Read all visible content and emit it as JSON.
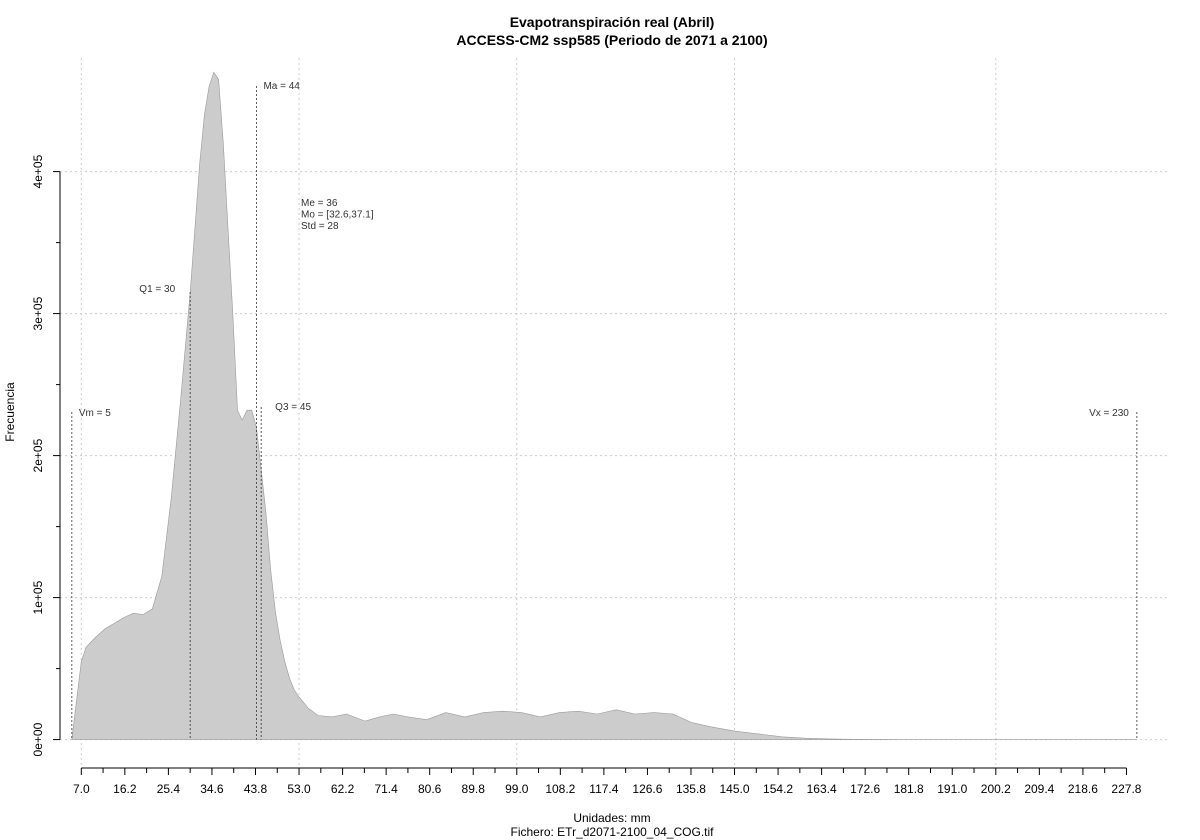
{
  "chart_data": {
    "type": "area",
    "title": "Evapotranspiración real (Abril)",
    "subtitle": "ACCESS-CM2 ssp585 (Periodo de 2071 a 2100)",
    "xlabel": "Unidades: mm",
    "caption": "Fichero: ETr_d2071-2100_04_COG.tif",
    "ylabel": "Frecuencia",
    "xlim": [
      2.5,
      237.0
    ],
    "ylim": [
      -20000,
      480000
    ],
    "grid": true,
    "x_tick_labels": [
      "7.0",
      "16.2",
      "25.4",
      "34.6",
      "43.8",
      "53.0",
      "62.2",
      "71.4",
      "80.6",
      "89.8",
      "99.0",
      "108.2",
      "117.4",
      "126.6",
      "135.8",
      "145.0",
      "154.2",
      "163.4",
      "172.6",
      "181.8",
      "191.0",
      "200.2",
      "209.4",
      "218.6",
      "227.8"
    ],
    "y_ticks": [
      0,
      100000,
      200000,
      300000,
      400000
    ],
    "y_tick_labels": [
      "0e+00",
      "1e+05",
      "2e+05",
      "3e+05",
      "4e+05"
    ],
    "density": {
      "x": [
        5,
        7,
        8,
        10,
        12,
        14,
        16,
        18,
        20,
        22,
        24,
        26,
        28,
        30,
        31,
        32,
        33,
        34,
        35,
        36,
        37,
        38,
        39,
        40,
        41,
        42,
        43,
        44,
        45,
        46,
        47,
        48,
        49,
        50,
        51,
        52,
        53,
        55,
        57,
        60,
        63,
        67,
        70,
        73,
        76,
        80,
        84,
        88,
        92,
        96,
        100,
        104,
        108,
        112,
        116,
        120,
        124,
        128,
        132,
        136,
        140,
        145,
        150,
        155,
        160,
        165,
        170,
        180,
        200,
        230
      ],
      "y": [
        0,
        55000,
        65000,
        72000,
        78000,
        82000,
        86000,
        89000,
        88000,
        92000,
        115000,
        170000,
        240000,
        315000,
        360000,
        405000,
        440000,
        460000,
        470000,
        465000,
        420000,
        360000,
        300000,
        232000,
        225000,
        232000,
        232000,
        220000,
        190000,
        160000,
        120000,
        90000,
        70000,
        55000,
        43000,
        35000,
        30000,
        22000,
        17000,
        16000,
        18000,
        13000,
        16000,
        18000,
        16000,
        14000,
        19000,
        16000,
        19000,
        20000,
        19000,
        16000,
        19000,
        20000,
        18000,
        21000,
        18000,
        19000,
        18000,
        12000,
        9000,
        6000,
        4000,
        2000,
        1000,
        500,
        200,
        100,
        50,
        0
      ]
    },
    "vertical_lines": [
      {
        "x": 5,
        "label": "Vm = 5"
      },
      {
        "x": 30,
        "label": "Q1 = 30"
      },
      {
        "x": 44,
        "label": "Ma = 44"
      },
      {
        "x": 45,
        "label": "Q3 = 45"
      },
      {
        "x": 230,
        "label": "Vx = 230"
      }
    ],
    "stats": [
      "Me = 36",
      "Mo = [32.6,37.1]",
      "Std = 28"
    ],
    "colors": {
      "fill": "#cccccc",
      "stroke": "#999999",
      "grid": "#cccccc",
      "lines": "#333333"
    }
  }
}
